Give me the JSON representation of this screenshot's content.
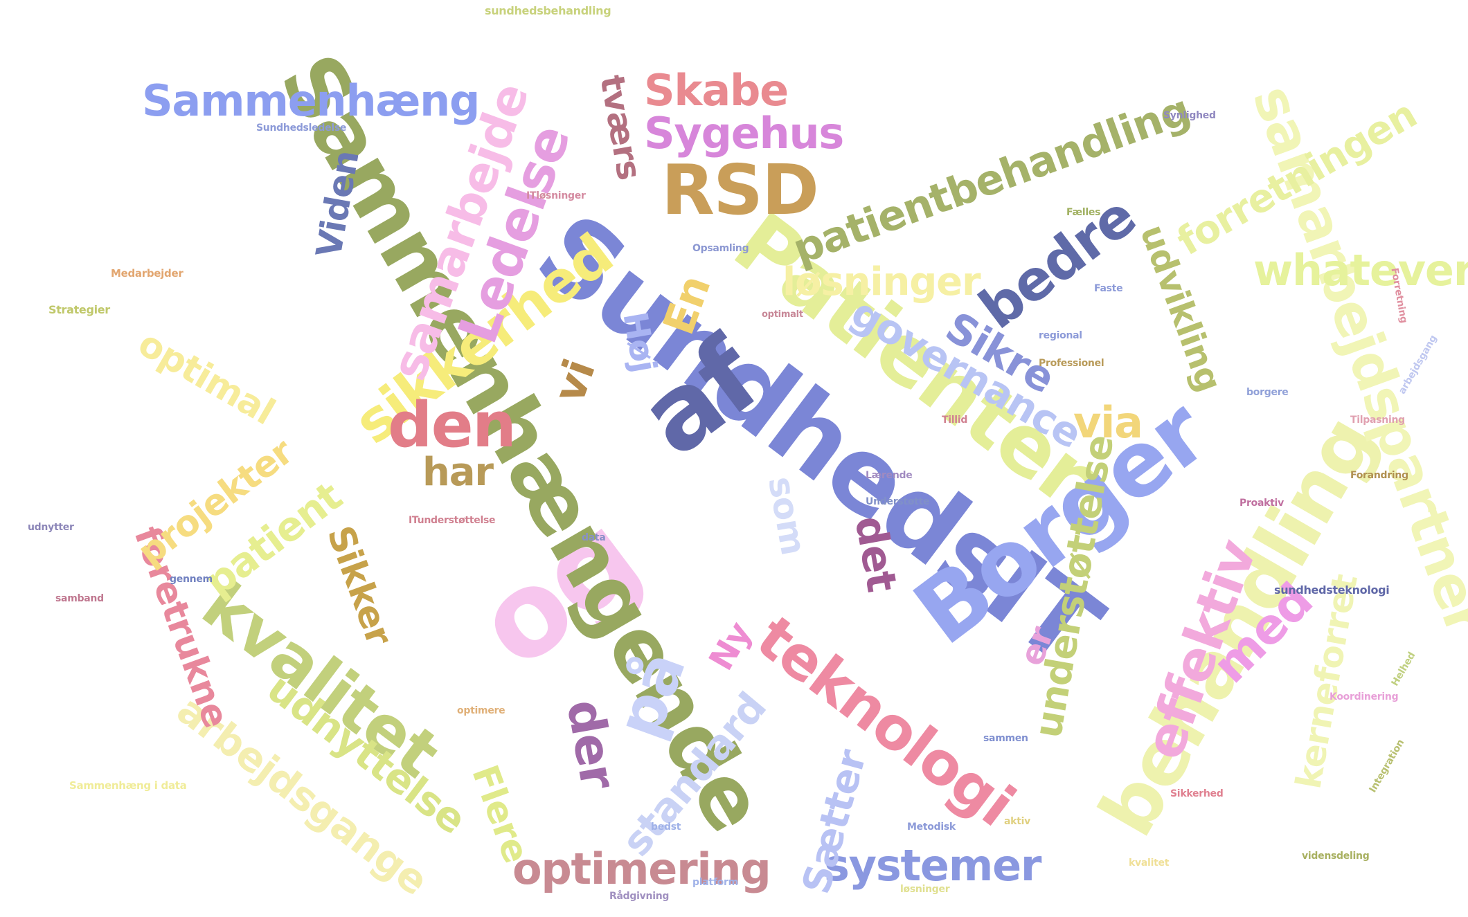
{
  "word_cloud": {
    "words": [
      {
        "text": "Sundheds​IT",
        "color": "#7b86d6",
        "orientation": "rotated"
      },
      {
        "text": "Patienter",
        "color": "#e4ee98",
        "orientation": "rotated"
      },
      {
        "text": "Borger",
        "color": "#97a6f0",
        "orientation": "rotated"
      },
      {
        "text": "af",
        "color": "#6068a8",
        "orientation": "rotated"
      },
      {
        "text": "og",
        "color": "#f7c6ee",
        "orientation": "rotated"
      },
      {
        "text": "Sammenhængende",
        "color": "#98a860",
        "orientation": "rotated"
      },
      {
        "text": "kvalitet",
        "color": "#c2d07c",
        "orientation": "rotated"
      },
      {
        "text": "behandling",
        "color": "#eef2ae",
        "orientation": "rotated"
      },
      {
        "text": "samarbejdspartner",
        "color": "#f1f5b6",
        "orientation": "rotated"
      },
      {
        "text": "teknologi",
        "color": "#ee8aa2",
        "orientation": "rotated"
      },
      {
        "text": "sikkerhed",
        "color": "#f6ec7a",
        "orientation": "rotated"
      },
      {
        "text": "Ledelse",
        "color": "#e59ee0",
        "orientation": "rotated"
      },
      {
        "text": "samarbejde",
        "color": "#f7bce7",
        "orientation": "rotated"
      },
      {
        "text": "RSD",
        "color": "#c99e59",
        "orientation": "horizontal"
      },
      {
        "text": "Sammenhæng",
        "color": "#8c9ef0",
        "orientation": "horizontal"
      },
      {
        "text": "Skabe",
        "color": "#e98a90",
        "orientation": "horizontal"
      },
      {
        "text": "Sygehus",
        "color": "#d786da",
        "orientation": "horizontal"
      },
      {
        "text": "bedre",
        "color": "#5f6aa8",
        "orientation": "rotated"
      },
      {
        "text": "patientbehandling",
        "color": "#a5b269",
        "orientation": "rotated"
      },
      {
        "text": "forretningen",
        "color": "#e8f0a0",
        "orientation": "rotated"
      },
      {
        "text": "whatever",
        "color": "#e6f29c",
        "orientation": "horizontal"
      },
      {
        "text": "løsninger",
        "color": "#f6f0a4",
        "orientation": "horizontal"
      },
      {
        "text": "governance",
        "color": "#b8c4f4",
        "orientation": "rotated"
      },
      {
        "text": "Sikre",
        "color": "#8892d8",
        "orientation": "rotated"
      },
      {
        "text": "udvikling",
        "color": "#b7c06e",
        "orientation": "rotated"
      },
      {
        "text": "understøttelse",
        "color": "#c3d078",
        "orientation": "rotated"
      },
      {
        "text": "effektiv",
        "color": "#f2a9dc",
        "orientation": "rotated"
      },
      {
        "text": "med",
        "color": "#ee9ce6",
        "orientation": "rotated"
      },
      {
        "text": "kerneforret",
        "color": "#f0f4b4",
        "orientation": "rotated"
      },
      {
        "text": "systemer",
        "color": "#8a98e0",
        "orientation": "horizontal"
      },
      {
        "text": "optimering",
        "color": "#c88a92",
        "orientation": "horizontal"
      },
      {
        "text": "Sætter",
        "color": "#b8c2f4",
        "orientation": "rotated"
      },
      {
        "text": "standard",
        "color": "#c9d2f5",
        "orientation": "rotated"
      },
      {
        "text": "der",
        "color": "#a06aa8",
        "orientation": "rotated"
      },
      {
        "text": "på",
        "color": "#c9d2f8",
        "orientation": "rotated"
      },
      {
        "text": "det",
        "color": "#a05a92",
        "orientation": "rotated"
      },
      {
        "text": "som",
        "color": "#d4dcf8",
        "orientation": "rotated"
      },
      {
        "text": "Ny",
        "color": "#ee8cd2",
        "orientation": "rotated"
      },
      {
        "text": "er",
        "color": "#e8a2da",
        "orientation": "rotated"
      },
      {
        "text": "Sikker",
        "color": "#c7a24a",
        "orientation": "rotated"
      },
      {
        "text": "Flere",
        "color": "#e0ea8a",
        "orientation": "rotated"
      },
      {
        "text": "arbejdsgange",
        "color": "#f4eeb0",
        "orientation": "rotated"
      },
      {
        "text": "udnyttelse",
        "color": "#d9e486",
        "orientation": "rotated"
      },
      {
        "text": "foretrukne",
        "color": "#e8889c",
        "orientation": "rotated"
      },
      {
        "text": "projekter",
        "color": "#f6dc80",
        "orientation": "rotated"
      },
      {
        "text": "patient",
        "color": "#e6ee90",
        "orientation": "rotated"
      },
      {
        "text": "optimal",
        "color": "#f7ec9a",
        "orientation": "rotated"
      },
      {
        "text": "den",
        "color": "#e27d88",
        "orientation": "horizontal"
      },
      {
        "text": "har",
        "color": "#b89a58",
        "orientation": "horizontal"
      },
      {
        "text": "via",
        "color": "#f2d67a",
        "orientation": "horizontal"
      },
      {
        "text": "vi",
        "color": "#b68a4a",
        "orientation": "rotated"
      },
      {
        "text": "En",
        "color": "#f1d06c",
        "orientation": "rotated"
      },
      {
        "text": "Høj",
        "color": "#a9b4f2",
        "orientation": "rotated"
      },
      {
        "text": "Viden",
        "color": "#6a78b4",
        "orientation": "rotated"
      },
      {
        "text": "tværs",
        "color": "#b37080",
        "orientation": "rotated"
      }
    ],
    "small_words": [
      "sundhedsbehandling",
      "Sundhedsledelse",
      "Strategier",
      "Medarbejder",
      "ITløsninger",
      "Opsamling",
      "optimalt",
      "regional",
      "Faste",
      "Professionel",
      "Lærende",
      "Understøtte",
      "data",
      "sundhedsteknologi",
      "platform",
      "bedst",
      "Metodisk",
      "Rådgivning",
      "løsninger",
      "ITunderstøttelse",
      "udnytter",
      "samband",
      "gennem",
      "Forretning",
      "Forandring",
      "Tilpasning",
      "arbejdsgang",
      "Koordinering",
      "Integration",
      "Sikkerhed",
      "sammen",
      "Proaktiv",
      "borgere",
      "kvalitet",
      "vidensdeling",
      "aktiv",
      "Helhed",
      "Sammenhæng i data",
      "optimere",
      "Tillid",
      "Fælles",
      "Synlighed"
    ]
  }
}
